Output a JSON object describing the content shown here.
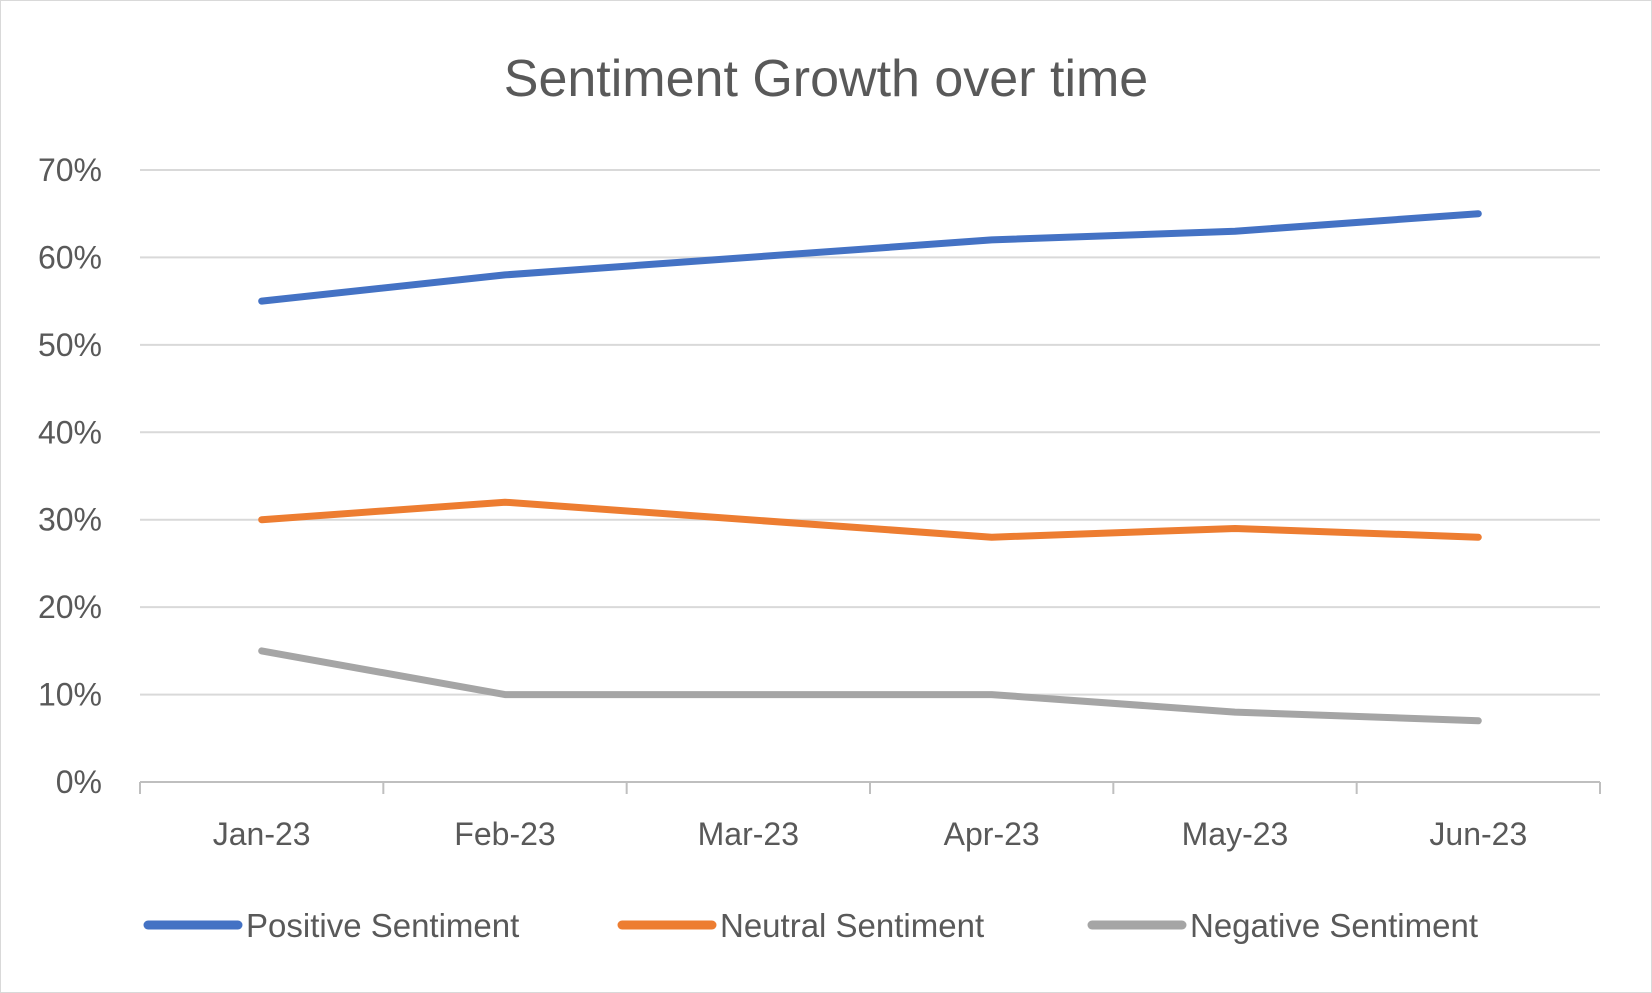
{
  "chart_data": {
    "type": "line",
    "title": "Sentiment Growth over time",
    "xlabel": "",
    "ylabel": "",
    "categories": [
      "Jan-23",
      "Feb-23",
      "Mar-23",
      "Apr-23",
      "May-23",
      "Jun-23"
    ],
    "y_ticks": [
      "0%",
      "10%",
      "20%",
      "30%",
      "40%",
      "50%",
      "60%",
      "70%"
    ],
    "ylim": [
      0,
      70
    ],
    "y_unit": "%",
    "grid": true,
    "legend_position": "bottom",
    "series": [
      {
        "name": "Positive Sentiment",
        "color": "#4472C4",
        "values": [
          55,
          58,
          null,
          62,
          63,
          65
        ]
      },
      {
        "name": "Neutral Sentiment",
        "color": "#ED7D31",
        "values": [
          30,
          32,
          null,
          28,
          29,
          28
        ]
      },
      {
        "name": "Negative Sentiment",
        "color": "#A5A5A5",
        "values": [
          15,
          10,
          null,
          10,
          8,
          7
        ]
      }
    ]
  }
}
